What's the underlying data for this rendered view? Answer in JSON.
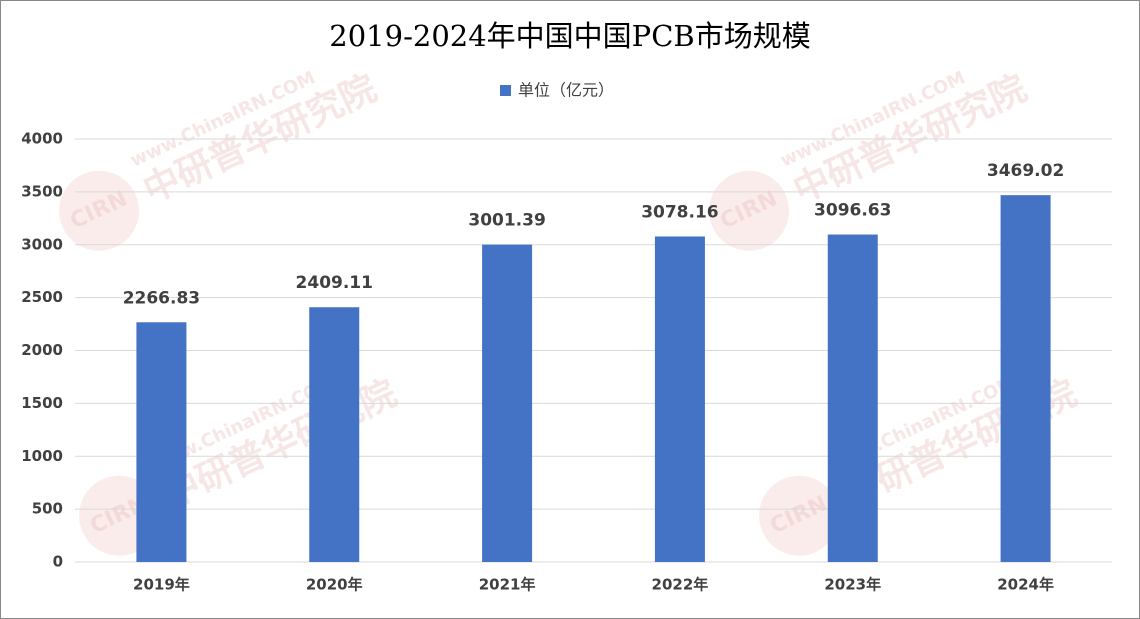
{
  "chart_data": {
    "type": "bar",
    "title": "2019-2024年中国中国PCB市场规模",
    "categories": [
      "2019年",
      "2020年",
      "2021年",
      "2022年",
      "2023年",
      "2024年"
    ],
    "series": [
      {
        "name": "单位（亿元）",
        "color": "#4472c4",
        "values": [
          2266.83,
          2409.11,
          3001.39,
          3078.16,
          3096.63,
          3469.02
        ]
      }
    ],
    "ylim": [
      0,
      4000
    ],
    "yticks": [
      0,
      500,
      1000,
      1500,
      2000,
      2500,
      3000,
      3500,
      4000
    ],
    "grid": true,
    "legend": "top",
    "watermark": {
      "logo": "CIRN",
      "url": "www.ChinaIRN.COM",
      "name": "中研普华研究院"
    }
  }
}
